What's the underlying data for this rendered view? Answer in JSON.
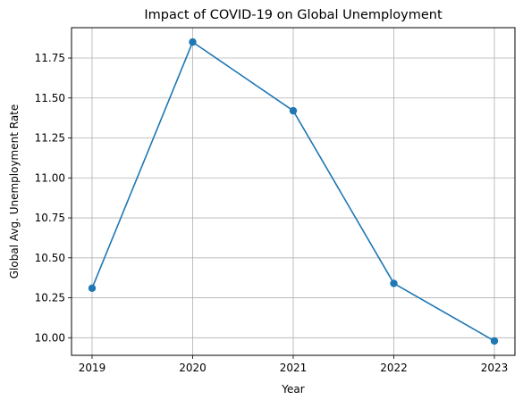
{
  "chart_data": {
    "type": "line",
    "title": "Impact of COVID-19 on Global Unemployment",
    "xlabel": "Year",
    "ylabel": "Global Avg. Unemployment Rate",
    "x": [
      "2019",
      "2020",
      "2021",
      "2022",
      "2023"
    ],
    "series": [
      {
        "values": [
          10.31,
          11.85,
          11.42,
          10.34,
          9.98
        ],
        "color": "#1f77b4",
        "marker": "circle"
      }
    ],
    "ylim": [
      9.89,
      11.94
    ],
    "y_ticks": [
      10.0,
      10.25,
      10.5,
      10.75,
      11.0,
      11.25,
      11.5,
      11.75
    ],
    "y_tick_labels": [
      "10.00",
      "10.25",
      "10.50",
      "10.75",
      "11.00",
      "11.25",
      "11.50",
      "11.75"
    ],
    "grid": true,
    "legend": null
  }
}
